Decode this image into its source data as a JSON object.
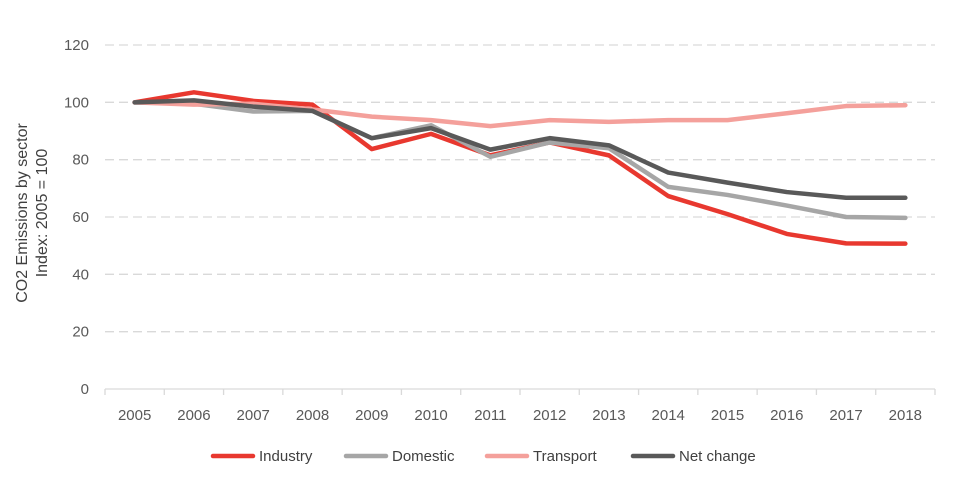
{
  "chart_data": {
    "type": "line",
    "title": "",
    "xlabel": "",
    "ylabel_lines": [
      "CO2 Emissions by sector",
      "Index: 2005 = 100"
    ],
    "ylim": [
      0,
      120
    ],
    "yticks": [
      0,
      20,
      40,
      60,
      80,
      100,
      120
    ],
    "grid": true,
    "legend_position": "bottom",
    "categories": [
      "2005",
      "2006",
      "2007",
      "2008",
      "2009",
      "2010",
      "2011",
      "2012",
      "2013",
      "2014",
      "2015",
      "2016",
      "2017",
      "2018"
    ],
    "series": [
      {
        "name": "Industry",
        "color": "#e8382f",
        "values": [
          100,
          103.5,
          100.5,
          99.2,
          83.7,
          89,
          81.5,
          86,
          81.5,
          67.3,
          61,
          54.1,
          50.8,
          50.7
        ]
      },
      {
        "name": "Domestic",
        "color": "#a6a6a6",
        "values": [
          100,
          99.5,
          96.8,
          97,
          87.5,
          92,
          81,
          86,
          84,
          70.5,
          67.7,
          64,
          60,
          59.7
        ]
      },
      {
        "name": "Transport",
        "color": "#f4a09b",
        "values": [
          100,
          99.2,
          99.5,
          97.5,
          95,
          93.8,
          91.7,
          93.8,
          93.2,
          93.8,
          93.8,
          96.2,
          98.7,
          99
        ]
      },
      {
        "name": "Net change",
        "color": "#595959",
        "values": [
          100,
          100.7,
          98.5,
          97,
          87.5,
          91,
          83.5,
          87.5,
          85,
          75.5,
          72,
          68.7,
          66.7,
          66.7
        ]
      }
    ]
  }
}
